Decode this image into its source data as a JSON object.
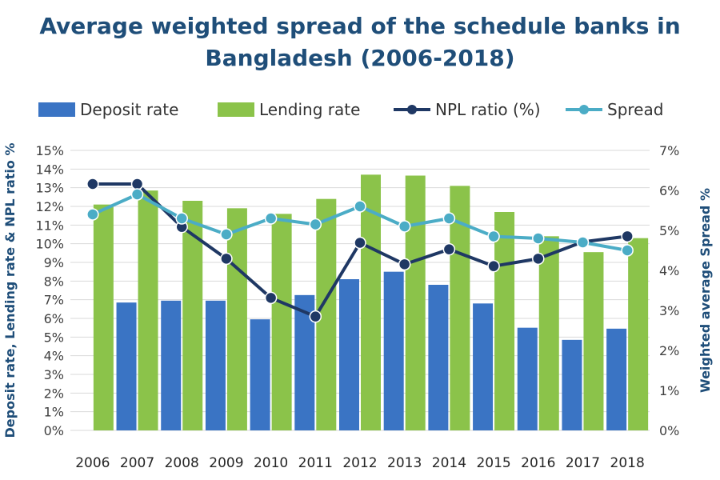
{
  "chart_data": {
    "type": "bar",
    "title_lines": [
      "Average weighted spread of the schedule banks in",
      "Bangladesh (2006-2018)"
    ],
    "categories": [
      "2006",
      "2007",
      "2008",
      "2009",
      "2010",
      "2011",
      "2012",
      "2013",
      "2014",
      "2015",
      "2016",
      "2017",
      "2018"
    ],
    "series": [
      {
        "name": "Deposit rate",
        "type": "bar",
        "axis": "left",
        "color": "#3a74c4",
        "values": [
          0,
          6.85,
          6.95,
          6.95,
          5.95,
          7.25,
          8.1,
          8.5,
          7.8,
          6.8,
          5.5,
          4.85,
          5.45
        ]
      },
      {
        "name": "Lending rate",
        "type": "bar",
        "axis": "left",
        "color": "#8bc34a",
        "values": [
          12.1,
          12.85,
          12.3,
          11.9,
          11.6,
          12.4,
          13.7,
          13.65,
          13.1,
          11.7,
          10.4,
          9.55,
          10.3
        ]
      },
      {
        "name": "NPL ratio (%)",
        "type": "line",
        "axis": "left",
        "color": "#1f3864",
        "values": [
          13.2,
          13.2,
          10.9,
          9.2,
          7.1,
          6.1,
          10.05,
          8.9,
          9.7,
          8.8,
          9.2,
          10.1,
          10.4
        ]
      },
      {
        "name": "Spread",
        "type": "line",
        "axis": "right",
        "color": "#4bacc6",
        "values": [
          5.4,
          5.9,
          5.3,
          4.9,
          5.3,
          5.15,
          5.6,
          5.1,
          5.3,
          4.85,
          4.8,
          4.7,
          4.5
        ]
      }
    ],
    "left_axis": {
      "title": "Deposit rate, Lending rate & NPL ratio %",
      "ylim": [
        0,
        15
      ],
      "ticks": [
        "0%",
        "1%",
        "2%",
        "3%",
        "4%",
        "5%",
        "6%",
        "7%",
        "8%",
        "9%",
        "10%",
        "11%",
        "12%",
        "13%",
        "14%",
        "15%"
      ]
    },
    "right_axis": {
      "title": "Weighted average Spread %",
      "ylim": [
        0,
        7
      ],
      "ticks": [
        "0%",
        "1%",
        "2%",
        "3%",
        "4%",
        "5%",
        "6%",
        "7%"
      ]
    },
    "gridlines": true,
    "legend_position": "top"
  }
}
